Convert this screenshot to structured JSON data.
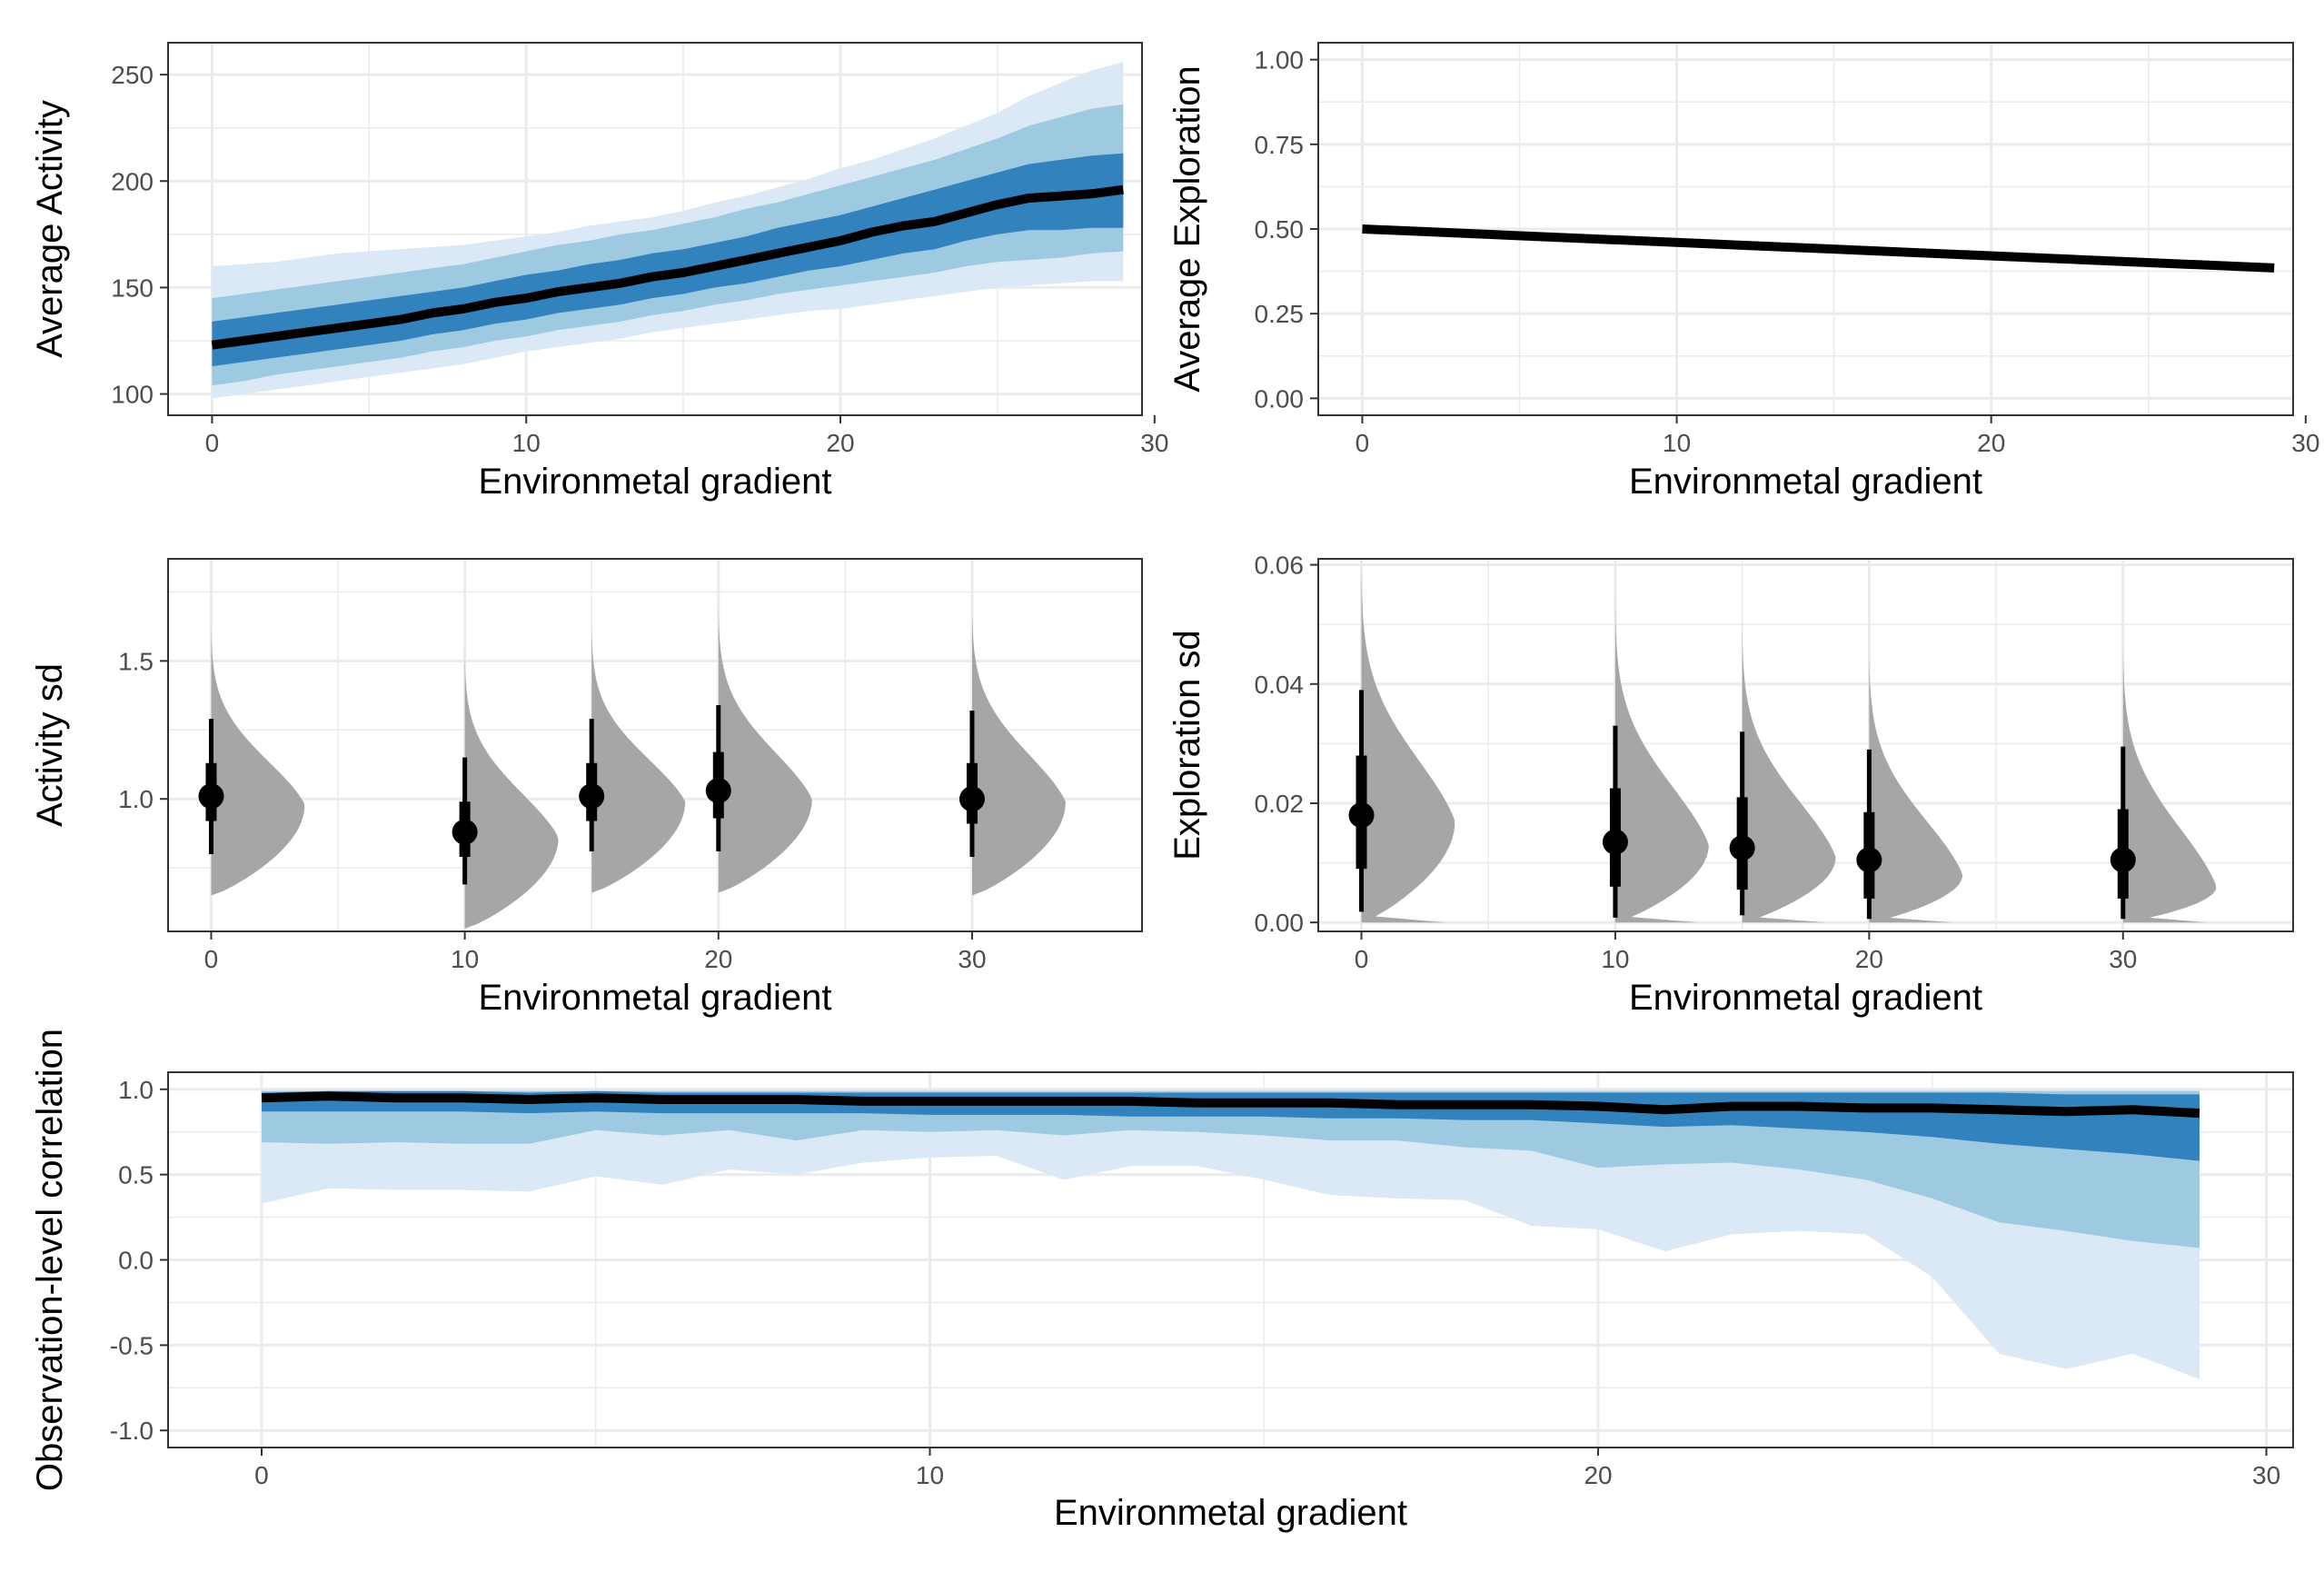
{
  "colors": {
    "band_outer": "#dbe8f5",
    "band_mid": "#9ecae1",
    "band_inner": "#3182bd",
    "line": "#000000",
    "density": "#a6a6a6",
    "point": "#000000"
  },
  "chart_data": [
    {
      "id": "activity_mean",
      "type": "area",
      "title": "",
      "xlabel": "Environmetal gradient",
      "ylabel": "Average Activity",
      "xlim": [
        -1.4,
        29.6
      ],
      "ylim": [
        90,
        265
      ],
      "xticks": [
        "0",
        "10",
        "20",
        "30"
      ],
      "yticks": [
        "100",
        "150",
        "200",
        "250"
      ],
      "grid": true,
      "legend": "none",
      "series": [
        {
          "role": "line",
          "values": [
            123,
            125,
            127,
            129,
            131,
            133,
            135,
            138,
            140,
            143,
            145,
            148,
            150,
            152,
            155,
            157,
            160,
            163,
            166,
            169,
            172,
            176,
            179,
            181,
            185,
            189,
            192,
            193,
            194,
            196
          ]
        },
        {
          "role": "band_inner",
          "lower": [
            113,
            115,
            117,
            119,
            121,
            123,
            125,
            128,
            130,
            133,
            135,
            138,
            140,
            142,
            145,
            147,
            150,
            152,
            155,
            158,
            160,
            163,
            166,
            168,
            172,
            175,
            177,
            177,
            178,
            178
          ],
          "upper": [
            134,
            136,
            138,
            140,
            142,
            144,
            146,
            148,
            150,
            153,
            156,
            158,
            161,
            163,
            166,
            168,
            171,
            174,
            178,
            181,
            184,
            188,
            192,
            196,
            200,
            204,
            208,
            210,
            212,
            213
          ]
        },
        {
          "role": "band_mid",
          "lower": [
            104,
            106,
            109,
            111,
            113,
            115,
            117,
            120,
            122,
            125,
            127,
            130,
            132,
            134,
            137,
            139,
            142,
            144,
            147,
            149,
            151,
            153,
            155,
            157,
            160,
            162,
            163,
            164,
            166,
            167
          ],
          "upper": [
            145,
            147,
            149,
            151,
            153,
            155,
            157,
            159,
            161,
            164,
            167,
            170,
            172,
            175,
            177,
            180,
            183,
            187,
            190,
            194,
            198,
            202,
            206,
            210,
            215,
            220,
            226,
            230,
            234,
            236
          ]
        },
        {
          "role": "band_outer",
          "lower": [
            98,
            100,
            102,
            104,
            106,
            108,
            110,
            112,
            114,
            117,
            120,
            122,
            124,
            126,
            129,
            131,
            133,
            135,
            137,
            139,
            140,
            142,
            144,
            146,
            148,
            150,
            151,
            152,
            153,
            153
          ],
          "upper": [
            160,
            161,
            162,
            164,
            166,
            167,
            168,
            169,
            170,
            172,
            174,
            176,
            179,
            181,
            183,
            186,
            190,
            193,
            197,
            201,
            206,
            210,
            215,
            220,
            226,
            232,
            240,
            246,
            252,
            256
          ]
        }
      ]
    },
    {
      "id": "exploration_mean",
      "type": "line",
      "title": "",
      "xlabel": "Environmetal gradient",
      "ylabel": "Average Exploration",
      "xlim": [
        -1.4,
        29.6
      ],
      "ylim": [
        -0.05,
        1.05
      ],
      "xticks": [
        "0",
        "10",
        "20",
        "30"
      ],
      "yticks": [
        "0.00",
        "0.25",
        "0.50",
        "0.75",
        "1.00"
      ],
      "grid": true,
      "legend": "none",
      "x": [
        0,
        29
      ],
      "series": [
        {
          "role": "line",
          "values": [
            0.5,
            0.385
          ]
        }
      ]
    },
    {
      "id": "activity_sd",
      "type": "scatter",
      "title": "",
      "xlabel": "Environmetal gradient",
      "ylabel": "Activity sd",
      "xlim": [
        -1.7,
        36.7
      ],
      "ylim": [
        0.52,
        1.87
      ],
      "xticks": [
        "0",
        "10",
        "20",
        "30"
      ],
      "yticks": [
        "1.0",
        "1.5"
      ],
      "grid": true,
      "legend": "none",
      "groups": [
        {
          "x": 0,
          "median": 1.01,
          "inner": [
            0.92,
            1.13
          ],
          "outer": [
            0.8,
            1.29
          ],
          "density_range": [
            0.65,
            1.65
          ],
          "density_mode": 0.98
        },
        {
          "x": 10,
          "median": 0.88,
          "inner": [
            0.79,
            0.99
          ],
          "outer": [
            0.69,
            1.15
          ],
          "density_range": [
            0.53,
            1.55
          ],
          "density_mode": 0.86
        },
        {
          "x": 15,
          "median": 1.01,
          "inner": [
            0.92,
            1.13
          ],
          "outer": [
            0.81,
            1.29
          ],
          "density_range": [
            0.66,
            1.65
          ],
          "density_mode": 0.99
        },
        {
          "x": 20,
          "median": 1.03,
          "inner": [
            0.93,
            1.17
          ],
          "outer": [
            0.81,
            1.34
          ],
          "density_range": [
            0.66,
            1.72
          ],
          "density_mode": 1.0
        },
        {
          "x": 30,
          "median": 1.0,
          "inner": [
            0.91,
            1.13
          ],
          "outer": [
            0.79,
            1.32
          ],
          "density_range": [
            0.65,
            1.72
          ],
          "density_mode": 0.99
        }
      ]
    },
    {
      "id": "exploration_sd",
      "type": "scatter",
      "title": "",
      "xlabel": "Environmetal gradient",
      "ylabel": "Exploration sd",
      "xlim": [
        -1.7,
        36.7
      ],
      "ylim": [
        -0.0015,
        0.061
      ],
      "xticks": [
        "0",
        "10",
        "20",
        "30"
      ],
      "yticks": [
        "0.00",
        "0.02",
        "0.04",
        "0.06"
      ],
      "grid": true,
      "legend": "none",
      "groups": [
        {
          "x": 0,
          "median": 0.018,
          "inner": [
            0.009,
            0.028
          ],
          "outer": [
            0.0018,
            0.039
          ],
          "density_range": [
            0.0,
            0.061
          ],
          "density_mode": 0.017
        },
        {
          "x": 10,
          "median": 0.0135,
          "inner": [
            0.006,
            0.0225
          ],
          "outer": [
            0.0008,
            0.033
          ],
          "density_range": [
            0.0,
            0.055
          ],
          "density_mode": 0.013
        },
        {
          "x": 15,
          "median": 0.0125,
          "inner": [
            0.0055,
            0.021
          ],
          "outer": [
            0.0012,
            0.032
          ],
          "density_range": [
            0.0,
            0.051
          ],
          "density_mode": 0.011
        },
        {
          "x": 20,
          "median": 0.0105,
          "inner": [
            0.004,
            0.0185
          ],
          "outer": [
            0.0006,
            0.029
          ],
          "density_range": [
            0.0,
            0.047
          ],
          "density_mode": 0.008
        },
        {
          "x": 30,
          "median": 0.0105,
          "inner": [
            0.004,
            0.019
          ],
          "outer": [
            0.0006,
            0.0295
          ],
          "density_range": [
            0.0,
            0.048
          ],
          "density_mode": 0.006
        }
      ]
    },
    {
      "id": "obs_correlation",
      "type": "area",
      "title": "",
      "xlabel": "Environmetal gradient",
      "ylabel": "Observation-level correlation",
      "xlim": [
        -1.4,
        30.4
      ],
      "ylim": [
        -1.1,
        1.1
      ],
      "xticks": [
        "0",
        "10",
        "20",
        "30"
      ],
      "yticks": [
        "-1.0",
        "-0.5",
        "0.0",
        "0.5",
        "1.0"
      ],
      "grid": true,
      "legend": "none",
      "series": [
        {
          "role": "line",
          "values": [
            0.95,
            0.96,
            0.95,
            0.95,
            0.94,
            0.95,
            0.94,
            0.94,
            0.94,
            0.93,
            0.93,
            0.93,
            0.93,
            0.93,
            0.92,
            0.92,
            0.92,
            0.91,
            0.91,
            0.91,
            0.9,
            0.88,
            0.9,
            0.9,
            0.89,
            0.89,
            0.88,
            0.87,
            0.88,
            0.86
          ]
        },
        {
          "role": "band_inner",
          "lower": [
            0.87,
            0.87,
            0.87,
            0.87,
            0.86,
            0.87,
            0.86,
            0.86,
            0.86,
            0.86,
            0.85,
            0.85,
            0.85,
            0.84,
            0.84,
            0.84,
            0.83,
            0.83,
            0.82,
            0.82,
            0.8,
            0.78,
            0.79,
            0.77,
            0.75,
            0.72,
            0.68,
            0.65,
            0.62,
            0.58
          ],
          "upper": [
            0.98,
            0.99,
            0.99,
            0.99,
            0.98,
            0.99,
            0.98,
            0.98,
            0.98,
            0.98,
            0.98,
            0.98,
            0.98,
            0.98,
            0.98,
            0.98,
            0.98,
            0.98,
            0.98,
            0.98,
            0.98,
            0.98,
            0.98,
            0.98,
            0.98,
            0.98,
            0.98,
            0.97,
            0.97,
            0.97
          ]
        },
        {
          "role": "band_mid",
          "lower": [
            0.69,
            0.68,
            0.69,
            0.68,
            0.68,
            0.76,
            0.73,
            0.76,
            0.7,
            0.76,
            0.75,
            0.76,
            0.73,
            0.76,
            0.75,
            0.73,
            0.7,
            0.7,
            0.66,
            0.64,
            0.54,
            0.56,
            0.57,
            0.53,
            0.47,
            0.36,
            0.22,
            0.17,
            0.11,
            0.07
          ],
          "upper": [
            0.99,
            0.99,
            0.99,
            0.99,
            0.99,
            0.99,
            0.99,
            0.99,
            0.99,
            0.99,
            0.99,
            0.99,
            0.99,
            0.99,
            0.99,
            0.99,
            0.99,
            0.99,
            0.99,
            0.99,
            0.99,
            0.99,
            0.99,
            0.99,
            0.99,
            0.99,
            0.99,
            0.99,
            0.99,
            0.99
          ]
        },
        {
          "role": "band_outer",
          "lower": [
            0.33,
            0.42,
            0.41,
            0.41,
            0.4,
            0.49,
            0.44,
            0.53,
            0.5,
            0.57,
            0.6,
            0.61,
            0.47,
            0.55,
            0.55,
            0.47,
            0.38,
            0.36,
            0.35,
            0.2,
            0.18,
            0.05,
            0.15,
            0.17,
            0.15,
            -0.1,
            -0.55,
            -0.64,
            -0.55,
            -0.7
          ],
          "upper": [
            1.0,
            1.0,
            1.0,
            1.0,
            1.0,
            1.0,
            1.0,
            1.0,
            1.0,
            1.0,
            1.0,
            1.0,
            1.0,
            1.0,
            1.0,
            1.0,
            1.0,
            1.0,
            1.0,
            1.0,
            1.0,
            1.0,
            1.0,
            1.0,
            1.0,
            1.0,
            1.0,
            1.0,
            1.0,
            1.0
          ]
        }
      ]
    }
  ]
}
